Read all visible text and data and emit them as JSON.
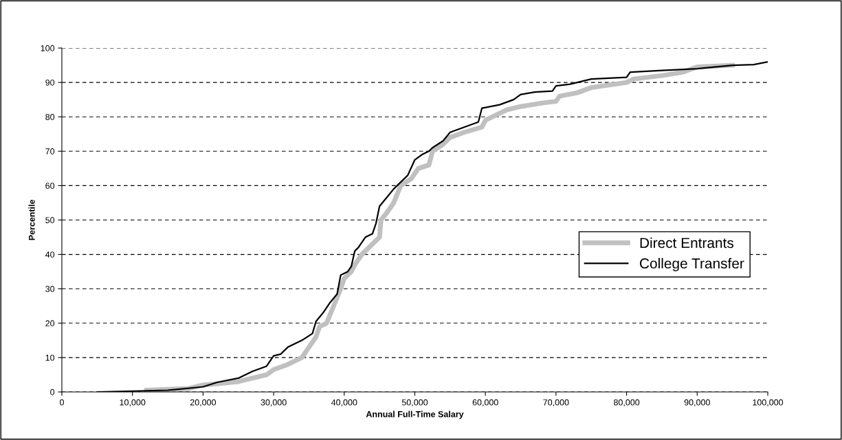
{
  "chart_data": {
    "type": "line",
    "xlabel": "Annual Full-Time Salary",
    "ylabel": "Percentile",
    "xlim": [
      0,
      100000
    ],
    "xticks": [
      0,
      {
        "value": 10000,
        "label": "10,000"
      },
      {
        "value": 20000,
        "label": "20,000"
      },
      {
        "value": 30000,
        "label": "30,000"
      },
      {
        "value": 40000,
        "label": "40,000"
      },
      {
        "value": 50000,
        "label": "50,000"
      },
      {
        "value": 60000,
        "label": "60,000"
      },
      {
        "value": 70000,
        "label": "70,000"
      },
      {
        "value": 80000,
        "label": "80,000"
      },
      {
        "value": 90000,
        "label": "90,000"
      },
      {
        "value": 100000,
        "label": "100,000"
      }
    ],
    "ylim": [
      0,
      100
    ],
    "yticks": [
      0,
      10,
      20,
      30,
      40,
      50,
      60,
      70,
      80,
      90,
      100
    ],
    "grid": "y",
    "legend": "right",
    "line_style": "solid",
    "marker": "none",
    "series": [
      {
        "name": "Direct Entrants",
        "color": "#c0c0c0",
        "x": [
          12000,
          18000,
          20000,
          25000,
          26000,
          29000,
          30000,
          32000,
          34000,
          35000,
          36000,
          36500,
          37500,
          38500,
          39500,
          40000,
          41000,
          41500,
          42500,
          44000,
          45000,
          45200,
          46000,
          47000,
          48000,
          49500,
          50500,
          52000,
          52500,
          54000,
          55000,
          57000,
          59500,
          60000,
          63000,
          65000,
          68000,
          70000,
          70500,
          73000,
          75000,
          80000,
          81000,
          85000,
          88000,
          90000,
          95000
        ],
        "values": [
          0.5,
          1,
          2,
          3,
          3.5,
          5,
          6.5,
          8,
          10,
          13,
          16,
          19,
          20,
          25,
          30,
          33,
          35,
          37,
          40,
          43,
          45,
          50,
          52,
          55,
          60,
          62,
          65,
          66,
          70,
          72,
          74,
          75.5,
          77,
          79,
          82,
          83,
          84,
          84.5,
          86,
          87,
          88.5,
          90,
          91,
          92,
          93,
          94.5,
          95
        ]
      },
      {
        "name": "College Transfer",
        "color": "#000000",
        "x": [
          5000,
          15000,
          20000,
          22000,
          25000,
          27000,
          29000,
          30000,
          31000,
          32000,
          34000,
          35500,
          36000,
          37000,
          38000,
          39000,
          39500,
          40500,
          41000,
          41500,
          42000,
          43000,
          44000,
          44500,
          45000,
          46000,
          47000,
          48000,
          49000,
          50000,
          51000,
          52000,
          52500,
          54000,
          55000,
          57000,
          59000,
          59500,
          62000,
          64000,
          65000,
          67000,
          69500,
          70000,
          72000,
          75000,
          80000,
          80500,
          85000,
          90000,
          95000,
          98000,
          100000
        ],
        "values": [
          0,
          0.5,
          1.5,
          2.8,
          4,
          6,
          7.5,
          10.5,
          11,
          13,
          15,
          17,
          20.5,
          23,
          26,
          28.5,
          34,
          35,
          36.5,
          41,
          42,
          45,
          46,
          49,
          54,
          56.5,
          59,
          61,
          63,
          67.5,
          69,
          70,
          71,
          73,
          75.5,
          77,
          78.5,
          82.5,
          83.5,
          85,
          86.5,
          87.2,
          87.5,
          89,
          89.5,
          91,
          91.5,
          93,
          93.5,
          94,
          95,
          95.2,
          96
        ]
      }
    ]
  }
}
